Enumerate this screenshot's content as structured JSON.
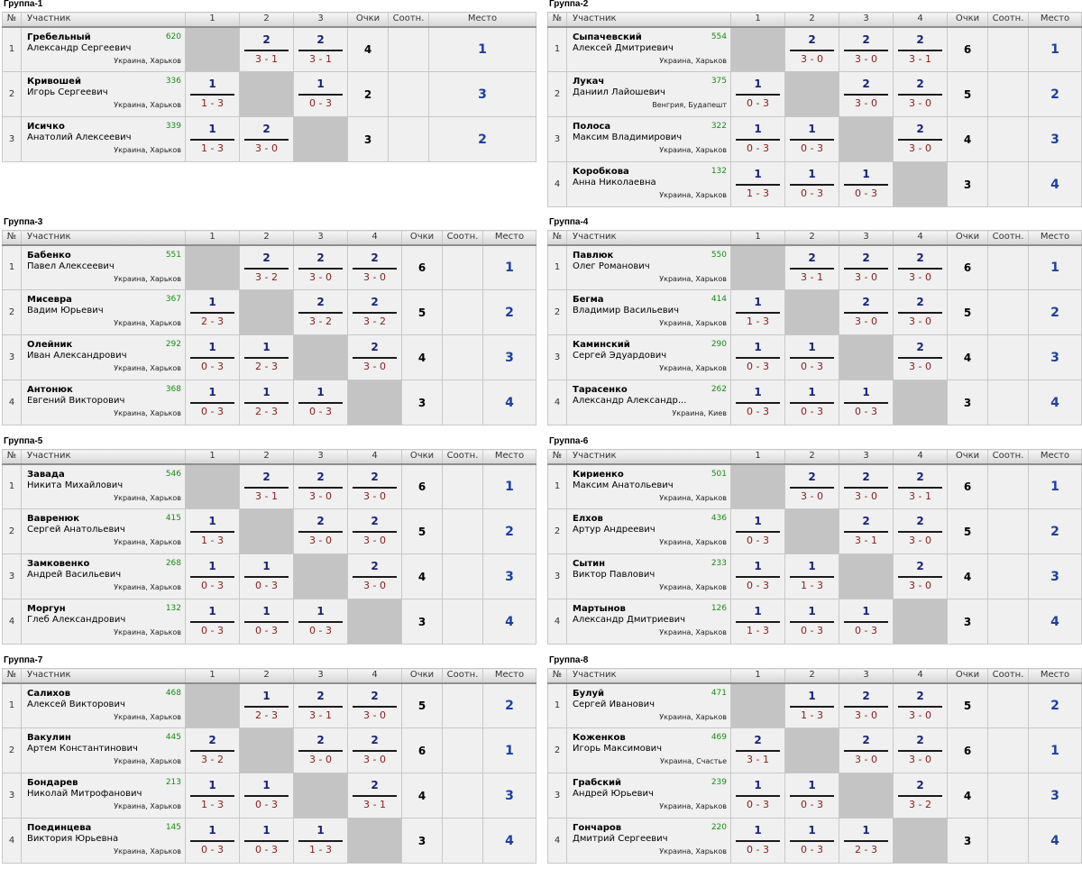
{
  "headers": {
    "num": "№",
    "player": "Участник",
    "cols": [
      "1",
      "2",
      "3",
      "4"
    ],
    "points": "Очки",
    "ratio": "Соотн.",
    "place": "Место"
  },
  "groups": [
    {
      "title": "Группа-1",
      "players": [
        {
          "n": "1",
          "last": "Гребельный",
          "first": "Александр Сергеевич",
          "rating": "620",
          "loc": "Украина, Харьков",
          "m": [
            null,
            {
              "p": "2",
              "s": "3 - 1"
            },
            {
              "p": "2",
              "s": "3 - 1"
            }
          ],
          "points": "4",
          "place": "1"
        },
        {
          "n": "2",
          "last": "Кривошей",
          "first": "Игорь Сергеевич",
          "rating": "336",
          "loc": "Украина, Харьков",
          "m": [
            {
              "p": "1",
              "s": "1 - 3"
            },
            null,
            {
              "p": "1",
              "s": "0 - 3"
            }
          ],
          "points": "2",
          "place": "3"
        },
        {
          "n": "3",
          "last": "Исичко",
          "first": "Анатолий Алексеевич",
          "rating": "339",
          "loc": "Украина, Харьков",
          "m": [
            {
              "p": "1",
              "s": "1 - 3"
            },
            {
              "p": "2",
              "s": "3 - 0"
            },
            null
          ],
          "points": "3",
          "place": "2"
        }
      ]
    },
    {
      "title": "Группа-2",
      "players": [
        {
          "n": "1",
          "last": "Сыпачевский",
          "first": "Алексей Дмитриевич",
          "rating": "554",
          "loc": "Украина, Харьков",
          "m": [
            null,
            {
              "p": "2",
              "s": "3 - 0"
            },
            {
              "p": "2",
              "s": "3 - 0"
            },
            {
              "p": "2",
              "s": "3 - 1"
            }
          ],
          "points": "6",
          "place": "1"
        },
        {
          "n": "2",
          "last": "Лукач",
          "first": "Даниил Лайошевич",
          "rating": "375",
          "loc": "Венгрия, Будапешт",
          "m": [
            {
              "p": "1",
              "s": "0 - 3"
            },
            null,
            {
              "p": "2",
              "s": "3 - 0"
            },
            {
              "p": "2",
              "s": "3 - 0"
            }
          ],
          "points": "5",
          "place": "2"
        },
        {
          "n": "3",
          "last": "Полоса",
          "first": "Максим Владимирович",
          "rating": "322",
          "loc": "Украина, Харьков",
          "m": [
            {
              "p": "1",
              "s": "0 - 3"
            },
            {
              "p": "1",
              "s": "0 - 3"
            },
            null,
            {
              "p": "2",
              "s": "3 - 0"
            }
          ],
          "points": "4",
          "place": "3"
        },
        {
          "n": "4",
          "last": "Коробкова",
          "first": "Анна Николаевна",
          "rating": "132",
          "loc": "Украина, Харьков",
          "m": [
            {
              "p": "1",
              "s": "1 - 3"
            },
            {
              "p": "1",
              "s": "0 - 3"
            },
            {
              "p": "1",
              "s": "0 - 3"
            },
            null
          ],
          "points": "3",
          "place": "4"
        }
      ]
    },
    {
      "title": "Группа-3",
      "players": [
        {
          "n": "1",
          "last": "Бабенко",
          "first": "Павел Алексеевич",
          "rating": "551",
          "loc": "Украина, Харьков",
          "m": [
            null,
            {
              "p": "2",
              "s": "3 - 2"
            },
            {
              "p": "2",
              "s": "3 - 0"
            },
            {
              "p": "2",
              "s": "3 - 0"
            }
          ],
          "points": "6",
          "place": "1"
        },
        {
          "n": "2",
          "last": "Мисевра",
          "first": "Вадим Юрьевич",
          "rating": "367",
          "loc": "Украина, Харьков",
          "m": [
            {
              "p": "1",
              "s": "2 - 3"
            },
            null,
            {
              "p": "2",
              "s": "3 - 2"
            },
            {
              "p": "2",
              "s": "3 - 2"
            }
          ],
          "points": "5",
          "place": "2"
        },
        {
          "n": "3",
          "last": "Олейник",
          "first": "Иван Александрович",
          "rating": "292",
          "loc": "Украина, Харьков",
          "m": [
            {
              "p": "1",
              "s": "0 - 3"
            },
            {
              "p": "1",
              "s": "2 - 3"
            },
            null,
            {
              "p": "2",
              "s": "3 - 0"
            }
          ],
          "points": "4",
          "place": "3"
        },
        {
          "n": "4",
          "last": "Антонюк",
          "first": "Евгений Викторович",
          "rating": "368",
          "loc": "Украина, Харьков",
          "m": [
            {
              "p": "1",
              "s": "0 - 3"
            },
            {
              "p": "1",
              "s": "2 - 3"
            },
            {
              "p": "1",
              "s": "0 - 3"
            },
            null
          ],
          "points": "3",
          "place": "4"
        }
      ]
    },
    {
      "title": "Группа-4",
      "players": [
        {
          "n": "1",
          "last": "Павлюк",
          "first": "Олег Романович",
          "rating": "550",
          "loc": "Украина, Харьков",
          "m": [
            null,
            {
              "p": "2",
              "s": "3 - 1"
            },
            {
              "p": "2",
              "s": "3 - 0"
            },
            {
              "p": "2",
              "s": "3 - 0"
            }
          ],
          "points": "6",
          "place": "1"
        },
        {
          "n": "2",
          "last": "Бегма",
          "first": "Владимир Васильевич",
          "rating": "414",
          "loc": "Украина, Харьков",
          "m": [
            {
              "p": "1",
              "s": "1 - 3"
            },
            null,
            {
              "p": "2",
              "s": "3 - 0"
            },
            {
              "p": "2",
              "s": "3 - 0"
            }
          ],
          "points": "5",
          "place": "2"
        },
        {
          "n": "3",
          "last": "Каминский",
          "first": "Сергей Эдуардович",
          "rating": "290",
          "loc": "Украина, Харьков",
          "m": [
            {
              "p": "1",
              "s": "0 - 3"
            },
            {
              "p": "1",
              "s": "0 - 3"
            },
            null,
            {
              "p": "2",
              "s": "3 - 0"
            }
          ],
          "points": "4",
          "place": "3"
        },
        {
          "n": "4",
          "last": "Тарасенко",
          "first": "Александр Александр...",
          "rating": "262",
          "loc": "Украина, Киев",
          "m": [
            {
              "p": "1",
              "s": "0 - 3"
            },
            {
              "p": "1",
              "s": "0 - 3"
            },
            {
              "p": "1",
              "s": "0 - 3"
            },
            null
          ],
          "points": "3",
          "place": "4"
        }
      ]
    },
    {
      "title": "Группа-5",
      "players": [
        {
          "n": "1",
          "last": "Завада",
          "first": "Никита Михайлович",
          "rating": "546",
          "loc": "Украина, Харьков",
          "m": [
            null,
            {
              "p": "2",
              "s": "3 - 1"
            },
            {
              "p": "2",
              "s": "3 - 0"
            },
            {
              "p": "2",
              "s": "3 - 0"
            }
          ],
          "points": "6",
          "place": "1"
        },
        {
          "n": "2",
          "last": "Вавренюк",
          "first": "Сергей Анатольевич",
          "rating": "415",
          "loc": "Украина, Харьков",
          "m": [
            {
              "p": "1",
              "s": "1 - 3"
            },
            null,
            {
              "p": "2",
              "s": "3 - 0"
            },
            {
              "p": "2",
              "s": "3 - 0"
            }
          ],
          "points": "5",
          "place": "2"
        },
        {
          "n": "3",
          "last": "Замковенко",
          "first": "Андрей Васильевич",
          "rating": "268",
          "loc": "Украина, Харьков",
          "m": [
            {
              "p": "1",
              "s": "0 - 3"
            },
            {
              "p": "1",
              "s": "0 - 3"
            },
            null,
            {
              "p": "2",
              "s": "3 - 0"
            }
          ],
          "points": "4",
          "place": "3"
        },
        {
          "n": "4",
          "last": "Моргун",
          "first": "Глеб Александрович",
          "rating": "132",
          "loc": "Украина, Харьков",
          "m": [
            {
              "p": "1",
              "s": "0 - 3"
            },
            {
              "p": "1",
              "s": "0 - 3"
            },
            {
              "p": "1",
              "s": "0 - 3"
            },
            null
          ],
          "points": "3",
          "place": "4"
        }
      ]
    },
    {
      "title": "Группа-6",
      "players": [
        {
          "n": "1",
          "last": "Кириенко",
          "first": "Максим Анатольевич",
          "rating": "501",
          "loc": "Украина, Харьков",
          "m": [
            null,
            {
              "p": "2",
              "s": "3 - 0"
            },
            {
              "p": "2",
              "s": "3 - 0"
            },
            {
              "p": "2",
              "s": "3 - 1"
            }
          ],
          "points": "6",
          "place": "1"
        },
        {
          "n": "2",
          "last": "Елхов",
          "first": "Артур Андреевич",
          "rating": "436",
          "loc": "Украина, Харьков",
          "m": [
            {
              "p": "1",
              "s": "0 - 3"
            },
            null,
            {
              "p": "2",
              "s": "3 - 1"
            },
            {
              "p": "2",
              "s": "3 - 0"
            }
          ],
          "points": "5",
          "place": "2"
        },
        {
          "n": "3",
          "last": "Сытин",
          "first": "Виктор Павлович",
          "rating": "233",
          "loc": "Украина, Харьков",
          "m": [
            {
              "p": "1",
              "s": "0 - 3"
            },
            {
              "p": "1",
              "s": "1 - 3"
            },
            null,
            {
              "p": "2",
              "s": "3 - 0"
            }
          ],
          "points": "4",
          "place": "3"
        },
        {
          "n": "4",
          "last": "Мартынов",
          "first": "Александр Дмитриевич",
          "rating": "126",
          "loc": "Украина, Харьков",
          "m": [
            {
              "p": "1",
              "s": "1 - 3"
            },
            {
              "p": "1",
              "s": "0 - 3"
            },
            {
              "p": "1",
              "s": "0 - 3"
            },
            null
          ],
          "points": "3",
          "place": "4"
        }
      ]
    },
    {
      "title": "Группа-7",
      "players": [
        {
          "n": "1",
          "last": "Салихов",
          "first": "Алексей Викторович",
          "rating": "468",
          "loc": "Украина, Харьков",
          "m": [
            null,
            {
              "p": "1",
              "s": "2 - 3"
            },
            {
              "p": "2",
              "s": "3 - 1"
            },
            {
              "p": "2",
              "s": "3 - 0"
            }
          ],
          "points": "5",
          "place": "2"
        },
        {
          "n": "2",
          "last": "Вакулин",
          "first": "Артем Константинович",
          "rating": "445",
          "loc": "Украина, Харьков",
          "m": [
            {
              "p": "2",
              "s": "3 - 2"
            },
            null,
            {
              "p": "2",
              "s": "3 - 0"
            },
            {
              "p": "2",
              "s": "3 - 0"
            }
          ],
          "points": "6",
          "place": "1"
        },
        {
          "n": "3",
          "last": "Бондарев",
          "first": "Николай Митрофанович",
          "rating": "213",
          "loc": "Украина, Харьков",
          "m": [
            {
              "p": "1",
              "s": "1 - 3"
            },
            {
              "p": "1",
              "s": "0 - 3"
            },
            null,
            {
              "p": "2",
              "s": "3 - 1"
            }
          ],
          "points": "4",
          "place": "3"
        },
        {
          "n": "4",
          "last": "Поединцева",
          "first": "Виктория Юрьевна",
          "rating": "145",
          "loc": "Украина, Харьков",
          "m": [
            {
              "p": "1",
              "s": "0 - 3"
            },
            {
              "p": "1",
              "s": "0 - 3"
            },
            {
              "p": "1",
              "s": "1 - 3"
            },
            null
          ],
          "points": "3",
          "place": "4"
        }
      ]
    },
    {
      "title": "Группа-8",
      "players": [
        {
          "n": "1",
          "last": "Булуй",
          "first": "Сергей Иванович",
          "rating": "471",
          "loc": "Украина, Харьков",
          "m": [
            null,
            {
              "p": "1",
              "s": "1 - 3"
            },
            {
              "p": "2",
              "s": "3 - 0"
            },
            {
              "p": "2",
              "s": "3 - 0"
            }
          ],
          "points": "5",
          "place": "2"
        },
        {
          "n": "2",
          "last": "Коженков",
          "first": "Игорь Максимович",
          "rating": "469",
          "loc": "Украина, Счастье",
          "m": [
            {
              "p": "2",
              "s": "3 - 1"
            },
            null,
            {
              "p": "2",
              "s": "3 - 0"
            },
            {
              "p": "2",
              "s": "3 - 0"
            }
          ],
          "points": "6",
          "place": "1"
        },
        {
          "n": "3",
          "last": "Грабский",
          "first": "Андрей Юрьевич",
          "rating": "239",
          "loc": "Украина, Харьков",
          "m": [
            {
              "p": "1",
              "s": "0 - 3"
            },
            {
              "p": "1",
              "s": "0 - 3"
            },
            null,
            {
              "p": "2",
              "s": "3 - 2"
            }
          ],
          "points": "4",
          "place": "3"
        },
        {
          "n": "4",
          "last": "Гончаров",
          "first": "Дмитрий Сергеевич",
          "rating": "220",
          "loc": "Украина, Харьков",
          "m": [
            {
              "p": "1",
              "s": "0 - 3"
            },
            {
              "p": "1",
              "s": "0 - 3"
            },
            {
              "p": "1",
              "s": "2 - 3"
            },
            null
          ],
          "points": "3",
          "place": "4"
        }
      ]
    }
  ]
}
